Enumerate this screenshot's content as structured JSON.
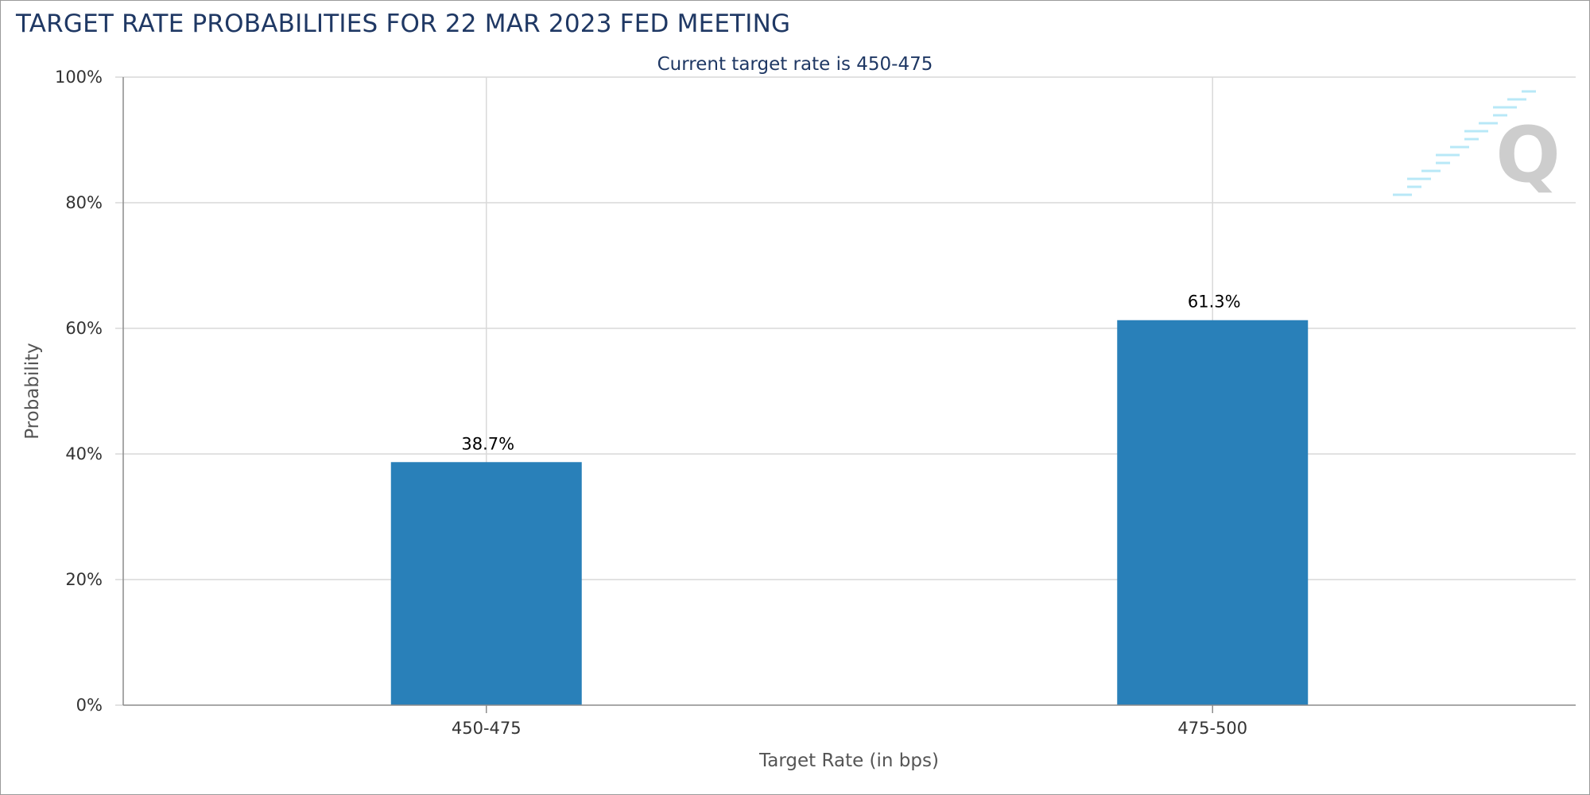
{
  "page": {
    "title": "TARGET RATE PROBABILITIES FOR 22 MAR 2023 FED MEETING"
  },
  "chart_data": {
    "type": "bar",
    "subtitle": "Current target rate is 450-475",
    "categories": [
      "450-475",
      "475-500"
    ],
    "series": [
      {
        "values": [
          38.7,
          61.3
        ],
        "data_labels": [
          "38.7%",
          "61.3%"
        ],
        "color": "#2980b9"
      }
    ],
    "xlabel": "Target Rate (in bps)",
    "ylabel": "Probability",
    "ylim": [
      0,
      100
    ],
    "yticks": [
      0,
      20,
      40,
      60,
      80,
      100
    ],
    "ytick_labels": [
      "0%",
      "20%",
      "40%",
      "60%",
      "80%",
      "100%"
    ],
    "grid": true,
    "legend": "none"
  },
  "colors": {
    "title": "#1f3864",
    "bar": "#2980b9",
    "grid": "#d9d9d9",
    "axis": "#8c8c8c"
  },
  "watermark": {
    "icon": "quikstrike-q-logo-icon",
    "letter": "Q"
  }
}
